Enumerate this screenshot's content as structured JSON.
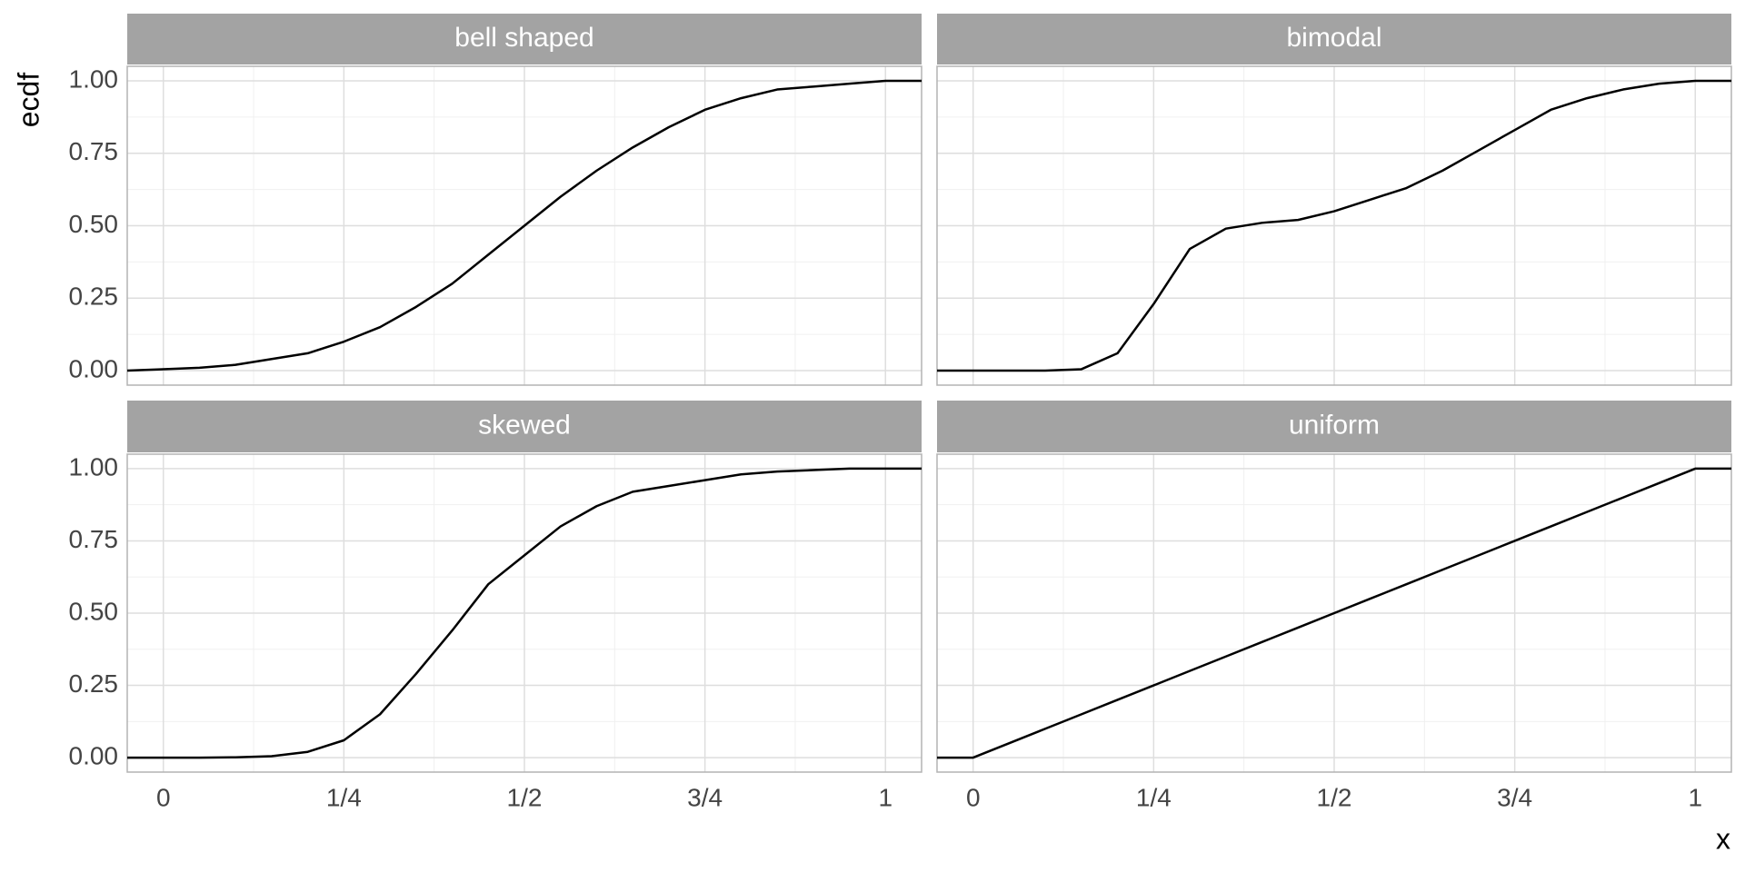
{
  "y_label": "ecdf",
  "x_label": "x",
  "chart_data": [
    {
      "type": "line",
      "title": "bell shaped",
      "color": "#000000",
      "x": [
        -0.05,
        0,
        0.05,
        0.1,
        0.15,
        0.2,
        0.25,
        0.3,
        0.35,
        0.4,
        0.45,
        0.5,
        0.55,
        0.6,
        0.65,
        0.7,
        0.75,
        0.8,
        0.85,
        0.9,
        0.95,
        1,
        1.05
      ],
      "values": [
        0,
        0.005,
        0.01,
        0.02,
        0.04,
        0.06,
        0.1,
        0.15,
        0.22,
        0.3,
        0.4,
        0.5,
        0.6,
        0.69,
        0.77,
        0.84,
        0.9,
        0.94,
        0.97,
        0.98,
        0.99,
        1,
        1
      ],
      "xlim": [
        -0.05,
        1.05
      ],
      "xticks": [
        0,
        {
          "value": 0.25,
          "label": "1/4"
        },
        {
          "value": 0.5,
          "label": "1/2"
        },
        {
          "value": 0.75,
          "label": "3/4"
        },
        1
      ],
      "ylim": [
        -0.05,
        1.05
      ],
      "yticks": [
        {
          "value": 0,
          "label": "0.00"
        },
        {
          "value": 0.25,
          "label": "0.25"
        },
        {
          "value": 0.5,
          "label": "0.50"
        },
        {
          "value": 0.75,
          "label": "0.75"
        },
        {
          "value": 1,
          "label": "1.00"
        }
      ],
      "grid": true
    },
    {
      "type": "line",
      "title": "bimodal",
      "color": "#000000",
      "x": [
        -0.05,
        0,
        0.05,
        0.1,
        0.15,
        0.2,
        0.25,
        0.3,
        0.35,
        0.4,
        0.45,
        0.5,
        0.55,
        0.6,
        0.65,
        0.7,
        0.75,
        0.8,
        0.85,
        0.9,
        0.95,
        1,
        1.05
      ],
      "values": [
        0,
        0,
        0,
        0,
        0.005,
        0.06,
        0.23,
        0.42,
        0.49,
        0.51,
        0.52,
        0.55,
        0.59,
        0.63,
        0.69,
        0.76,
        0.83,
        0.9,
        0.94,
        0.97,
        0.99,
        1,
        1
      ],
      "xlim": [
        -0.05,
        1.05
      ],
      "xticks": [
        0,
        {
          "value": 0.25,
          "label": "1/4"
        },
        {
          "value": 0.5,
          "label": "1/2"
        },
        {
          "value": 0.75,
          "label": "3/4"
        },
        1
      ],
      "ylim": [
        -0.05,
        1.05
      ],
      "yticks": [
        {
          "value": 0,
          "label": "0.00"
        },
        {
          "value": 0.25,
          "label": "0.25"
        },
        {
          "value": 0.5,
          "label": "0.50"
        },
        {
          "value": 0.75,
          "label": "0.75"
        },
        {
          "value": 1,
          "label": "1.00"
        }
      ],
      "grid": true
    },
    {
      "type": "line",
      "title": "skewed",
      "color": "#000000",
      "x": [
        -0.05,
        0,
        0.05,
        0.1,
        0.15,
        0.2,
        0.25,
        0.3,
        0.35,
        0.4,
        0.45,
        0.5,
        0.55,
        0.6,
        0.65,
        0.7,
        0.75,
        0.8,
        0.85,
        0.9,
        0.95,
        1,
        1.05
      ],
      "values": [
        0,
        0,
        0,
        0.001,
        0.005,
        0.02,
        0.06,
        0.15,
        0.29,
        0.44,
        0.6,
        0.7,
        0.8,
        0.87,
        0.92,
        0.94,
        0.96,
        0.98,
        0.99,
        0.995,
        1,
        1,
        1
      ],
      "xlim": [
        -0.05,
        1.05
      ],
      "xticks": [
        0,
        {
          "value": 0.25,
          "label": "1/4"
        },
        {
          "value": 0.5,
          "label": "1/2"
        },
        {
          "value": 0.75,
          "label": "3/4"
        },
        1
      ],
      "ylim": [
        -0.05,
        1.05
      ],
      "yticks": [
        {
          "value": 0,
          "label": "0.00"
        },
        {
          "value": 0.25,
          "label": "0.25"
        },
        {
          "value": 0.5,
          "label": "0.50"
        },
        {
          "value": 0.75,
          "label": "0.75"
        },
        {
          "value": 1,
          "label": "1.00"
        }
      ],
      "grid": true
    },
    {
      "type": "line",
      "title": "uniform",
      "color": "#000000",
      "x": [
        -0.05,
        0,
        0.05,
        0.1,
        0.15,
        0.2,
        0.25,
        0.3,
        0.35,
        0.4,
        0.45,
        0.5,
        0.55,
        0.6,
        0.65,
        0.7,
        0.75,
        0.8,
        0.85,
        0.9,
        0.95,
        1,
        1.05
      ],
      "values": [
        0,
        0,
        0.05,
        0.1,
        0.15,
        0.2,
        0.25,
        0.3,
        0.35,
        0.4,
        0.45,
        0.5,
        0.55,
        0.6,
        0.65,
        0.7,
        0.75,
        0.8,
        0.85,
        0.9,
        0.95,
        1,
        1
      ],
      "xlim": [
        -0.05,
        1.05
      ],
      "xticks": [
        0,
        {
          "value": 0.25,
          "label": "1/4"
        },
        {
          "value": 0.5,
          "label": "1/2"
        },
        {
          "value": 0.75,
          "label": "3/4"
        },
        1
      ],
      "ylim": [
        -0.05,
        1.05
      ],
      "yticks": [
        {
          "value": 0,
          "label": "0.00"
        },
        {
          "value": 0.25,
          "label": "0.25"
        },
        {
          "value": 0.5,
          "label": "0.50"
        },
        {
          "value": 0.75,
          "label": "0.75"
        },
        {
          "value": 1,
          "label": "1.00"
        }
      ],
      "grid": true
    }
  ]
}
